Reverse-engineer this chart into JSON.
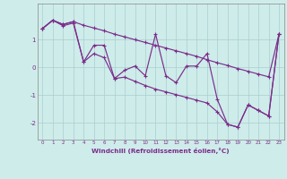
{
  "x": [
    0,
    1,
    2,
    3,
    4,
    5,
    6,
    7,
    8,
    9,
    10,
    11,
    12,
    13,
    14,
    15,
    16,
    17,
    18,
    19,
    20,
    21,
    22,
    23
  ],
  "y_main": [
    1.4,
    1.7,
    1.5,
    1.6,
    0.2,
    0.8,
    0.8,
    -0.4,
    -0.1,
    0.05,
    -0.3,
    1.2,
    -0.3,
    -0.55,
    0.05,
    0.05,
    0.5,
    -1.15,
    -2.05,
    -2.15,
    -1.35,
    -1.55,
    -1.75,
    1.2
  ],
  "y_upper": [
    1.4,
    1.7,
    1.55,
    1.65,
    1.52,
    1.42,
    1.32,
    1.2,
    1.1,
    1.0,
    0.9,
    0.8,
    0.7,
    0.6,
    0.5,
    0.4,
    0.28,
    0.17,
    0.07,
    -0.04,
    -0.14,
    -0.24,
    -0.34,
    1.2
  ],
  "y_lower": [
    1.4,
    1.7,
    1.55,
    1.65,
    0.2,
    0.5,
    0.35,
    -0.4,
    -0.35,
    -0.5,
    -0.65,
    -0.78,
    -0.88,
    -0.98,
    -1.08,
    -1.18,
    -1.28,
    -1.6,
    -2.05,
    -2.15,
    -1.35,
    -1.55,
    -1.75,
    1.2
  ],
  "line_color": "#7b2d8b",
  "bg_color": "#ceecea",
  "grid_color": "#aacece",
  "xlabel": "Windchill (Refroidissement éolien,°C)",
  "xlim": [
    -0.5,
    23.5
  ],
  "ylim": [
    -2.6,
    2.3
  ],
  "yticks": [
    -2,
    -1,
    0,
    1
  ],
  "xticks": [
    0,
    1,
    2,
    3,
    4,
    5,
    6,
    7,
    8,
    9,
    10,
    11,
    12,
    13,
    14,
    15,
    16,
    17,
    18,
    19,
    20,
    21,
    22,
    23
  ]
}
